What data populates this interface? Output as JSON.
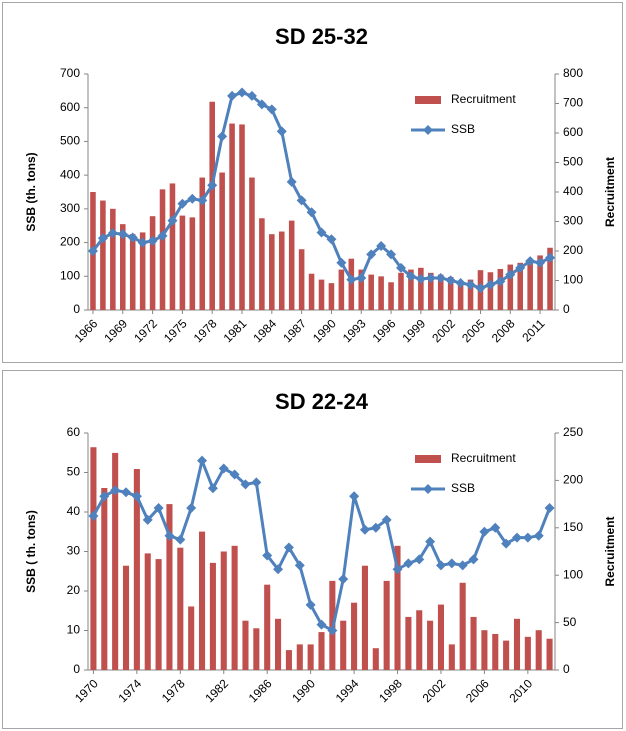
{
  "chart_data": [
    {
      "type": "combo",
      "title": "SD 25-32",
      "ylabel": "SSB (th. tons)",
      "y2label": "Recruitment",
      "legend": "top-right",
      "categories": [
        "1966",
        null,
        null,
        "1969",
        null,
        null,
        "1972",
        null,
        null,
        "1975",
        null,
        null,
        "1978",
        null,
        null,
        "1981",
        null,
        null,
        "1984",
        null,
        null,
        "1987",
        null,
        null,
        "1990",
        null,
        null,
        "1993",
        null,
        null,
        "1996",
        null,
        null,
        "1999",
        null,
        null,
        "2002",
        null,
        null,
        "2005",
        null,
        null,
        "2008",
        null,
        null,
        "2011",
        null
      ],
      "series": [
        {
          "name": "Recruitment",
          "type": "bar",
          "axis": "y2",
          "color": "#c0504d",
          "values": [
            400,
            371,
            343,
            291,
            257,
            263,
            318,
            409,
            429,
            320,
            314,
            449,
            706,
            466,
            632,
            629,
            449,
            311,
            257,
            266,
            303,
            206,
            123,
            103,
            91,
            137,
            174,
            137,
            120,
            114,
            94,
            126,
            137,
            143,
            126,
            120,
            112,
            91,
            103,
            135,
            128,
            139,
            154,
            160,
            171,
            185,
            211
          ]
        },
        {
          "name": "SSB",
          "type": "line",
          "color": "#4f81bd",
          "values": [
            175,
            213,
            228,
            225,
            215,
            200,
            205,
            220,
            265,
            315,
            330,
            325,
            370,
            515,
            635,
            645,
            635,
            610,
            595,
            530,
            380,
            325,
            290,
            230,
            210,
            140,
            90,
            95,
            165,
            190,
            165,
            125,
            100,
            92,
            95,
            95,
            88,
            80,
            75,
            65,
            75,
            85,
            105,
            125,
            145,
            140,
            155
          ]
        }
      ],
      "ylim": [
        0,
        700
      ],
      "yticks": [
        0,
        100,
        200,
        300,
        400,
        500,
        600,
        700
      ],
      "y2lim": [
        0,
        800
      ],
      "y2ticks": [
        0,
        100,
        200,
        300,
        400,
        500,
        600,
        700,
        800
      ]
    },
    {
      "type": "combo",
      "title": "SD 22-24",
      "ylabel": "SSB ( th. tons)",
      "y2label": "Recruitment",
      "legend": "top-right",
      "categories": [
        "1970",
        null,
        null,
        null,
        "1974",
        null,
        null,
        null,
        "1978",
        null,
        null,
        null,
        "1982",
        null,
        null,
        null,
        "1986",
        null,
        null,
        null,
        "1990",
        null,
        null,
        null,
        "1994",
        null,
        null,
        null,
        "1998",
        null,
        null,
        null,
        "2002",
        null,
        null,
        null,
        "2006",
        null,
        null,
        null,
        "2010",
        null,
        null
      ],
      "series": [
        {
          "name": "Recruitment",
          "type": "bar",
          "axis": "y2",
          "color": "#c0504d",
          "values": [
            235,
            192,
            229,
            110,
            212,
            123,
            117,
            175,
            129,
            67,
            146,
            113,
            125,
            131,
            52,
            44,
            90,
            54,
            21,
            27,
            27,
            40,
            94,
            52,
            71,
            110,
            23,
            94,
            131,
            56,
            63,
            52,
            69,
            27,
            92,
            56,
            42,
            38,
            31,
            54,
            35,
            42,
            33
          ]
        },
        {
          "name": "SSB",
          "type": "line",
          "color": "#4f81bd",
          "values": [
            39,
            44,
            45.5,
            45,
            44,
            38,
            41,
            34,
            33,
            41,
            53,
            46,
            51,
            49.5,
            47,
            47.5,
            29,
            25.5,
            31,
            26.5,
            16.5,
            11.5,
            10,
            23,
            44,
            35.5,
            36,
            38,
            25.5,
            27,
            28,
            32.5,
            26.5,
            27,
            26.5,
            28,
            35,
            36,
            32,
            33.5,
            33.5,
            34,
            41
          ]
        }
      ],
      "ylim": [
        0,
        60
      ],
      "yticks": [
        0,
        10,
        20,
        30,
        40,
        50,
        60
      ],
      "y2lim": [
        0,
        250
      ],
      "y2ticks": [
        0,
        50,
        100,
        150,
        200,
        250
      ]
    }
  ]
}
